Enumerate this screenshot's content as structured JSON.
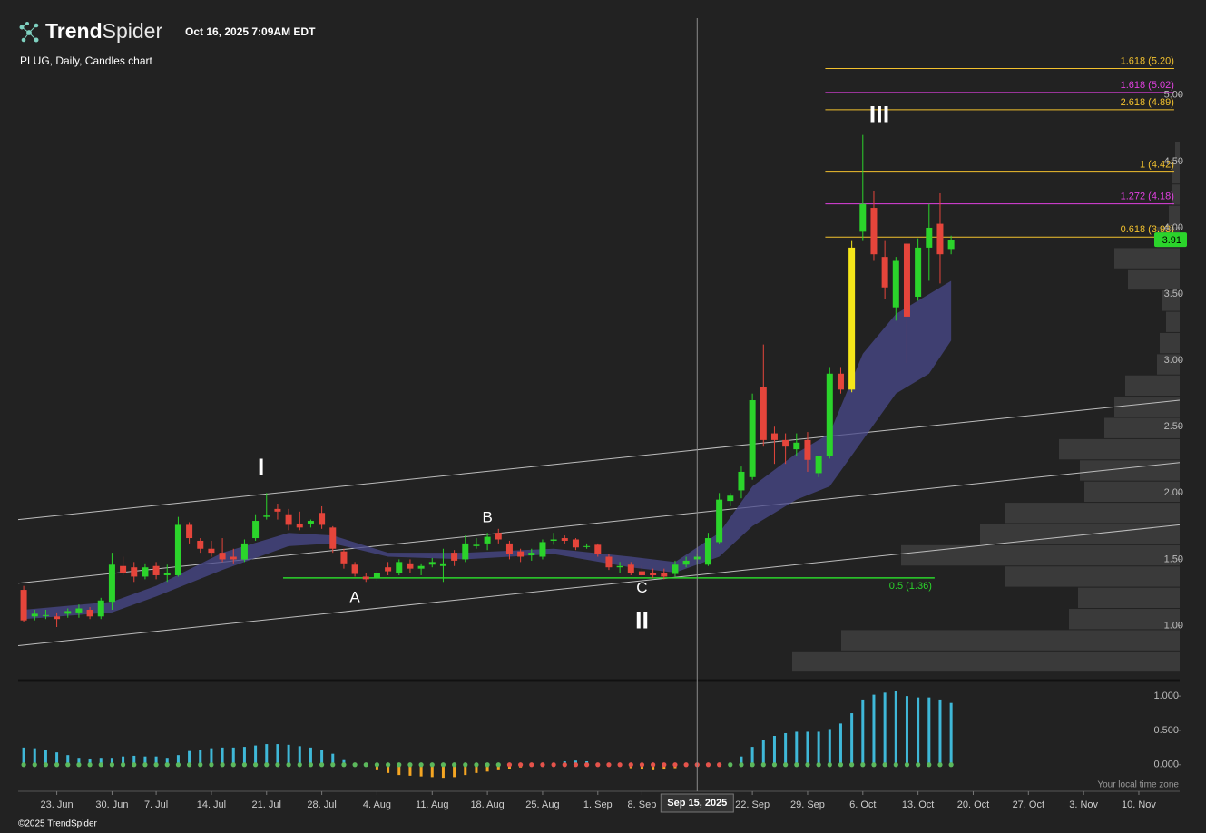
{
  "header": {
    "logo": {
      "bold": "Trend",
      "light": "Spider"
    },
    "timestamp": "Oct 16, 2025 7:09AM EDT",
    "chart_name": "PLUG, Daily, Candles chart",
    "copyright": "©2025 TrendSpider",
    "timezone_note": "Your local time zone"
  },
  "chart_data": {
    "type": "candlestick",
    "xlim": [
      -0.5,
      104.7
    ],
    "xticks": [
      {
        "value": 3,
        "label": "23. Jun"
      },
      {
        "value": 8,
        "label": "30. Jun"
      },
      {
        "value": 12,
        "label": "7. Jul"
      },
      {
        "value": 17,
        "label": "14. Jul"
      },
      {
        "value": 22,
        "label": "21. Jul"
      },
      {
        "value": 27,
        "label": "28. Jul"
      },
      {
        "value": 32,
        "label": "4. Aug"
      },
      {
        "value": 37,
        "label": "11. Aug"
      },
      {
        "value": 42,
        "label": "18. Aug"
      },
      {
        "value": 47,
        "label": "25. Aug"
      },
      {
        "value": 52,
        "label": "1. Sep"
      },
      {
        "value": 56,
        "label": "8. Sep"
      },
      {
        "value": 66,
        "label": "22. Sep"
      },
      {
        "value": 71,
        "label": "29. Sep"
      },
      {
        "value": 76,
        "label": "6. Oct"
      },
      {
        "value": 81,
        "label": "13. Oct"
      },
      {
        "value": 86,
        "label": "20. Oct"
      },
      {
        "value": 91,
        "label": "27. Oct"
      },
      {
        "value": 96,
        "label": "3. Nov"
      },
      {
        "value": 101,
        "label": "10. Nov"
      }
    ],
    "ylim": [
      0.6,
      5.58
    ],
    "yticks": [
      {
        "value": 1,
        "label": "1.00"
      },
      {
        "value": 1.5,
        "label": "1.50"
      },
      {
        "value": 2,
        "label": "2.00"
      },
      {
        "value": 2.5,
        "label": "2.50"
      },
      {
        "value": 3,
        "label": "3.00"
      },
      {
        "value": 3.5,
        "label": "3.50"
      },
      {
        "value": 4,
        "label": "4.00"
      },
      {
        "value": 4.5,
        "label": "4.50"
      },
      {
        "value": 5,
        "label": "5.00"
      }
    ],
    "up_color": "#2bd42b",
    "down_color": "#e5453b",
    "highlight_color": "#f5e61a",
    "highlighted": [
      75
    ],
    "open": [
      1.27,
      1.07,
      1.08,
      1.07,
      1.09,
      1.1,
      1.12,
      1.07,
      1.18,
      1.45,
      1.44,
      1.37,
      1.45,
      1.38,
      1.38,
      1.76,
      1.64,
      1.58,
      1.55,
      1.52,
      1.5,
      1.66,
      1.82,
      1.88,
      1.84,
      1.77,
      1.77,
      1.85,
      1.74,
      1.56,
      1.46,
      1.37,
      1.36,
      1.44,
      1.4,
      1.47,
      1.43,
      1.46,
      1.45,
      1.55,
      1.5,
      1.6,
      1.62,
      1.7,
      1.62,
      1.56,
      1.53,
      1.52,
      1.64,
      1.66,
      1.65,
      1.6,
      1.61,
      1.52,
      1.44,
      1.46,
      1.41,
      1.4,
      1.4,
      1.39,
      1.46,
      1.5,
      1.46,
      1.63,
      1.94,
      2.02,
      2.12,
      2.8,
      2.45,
      2.4,
      2.33,
      2.4,
      2.15,
      2.28,
      2.9,
      2.78,
      3.97,
      4.15,
      3.78,
      3.4,
      3.88,
      3.48,
      3.85,
      4.03,
      3.84
    ],
    "high": [
      1.3,
      1.12,
      1.12,
      1.1,
      1.13,
      1.16,
      1.14,
      1.21,
      1.55,
      1.52,
      1.48,
      1.47,
      1.48,
      1.46,
      1.82,
      1.78,
      1.66,
      1.64,
      1.66,
      1.58,
      1.65,
      1.84,
      2.0,
      1.92,
      1.88,
      1.86,
      1.8,
      1.9,
      1.75,
      1.58,
      1.48,
      1.4,
      1.42,
      1.48,
      1.5,
      1.5,
      1.47,
      1.51,
      1.58,
      1.57,
      1.68,
      1.66,
      1.7,
      1.73,
      1.64,
      1.58,
      1.58,
      1.65,
      1.7,
      1.68,
      1.66,
      1.62,
      1.62,
      1.54,
      1.48,
      1.48,
      1.45,
      1.43,
      1.43,
      1.49,
      1.52,
      1.54,
      1.7,
      2.0,
      2.0,
      2.2,
      2.75,
      3.12,
      2.5,
      2.45,
      2.45,
      2.46,
      2.28,
      2.95,
      2.95,
      3.9,
      4.7,
      4.28,
      3.9,
      3.78,
      3.92,
      3.92,
      4.18,
      4.26,
      3.94
    ],
    "low": [
      1.03,
      1.04,
      1.05,
      0.99,
      1.06,
      1.06,
      1.05,
      1.05,
      1.12,
      1.38,
      1.33,
      1.35,
      1.35,
      1.33,
      1.37,
      1.62,
      1.55,
      1.52,
      1.48,
      1.47,
      1.48,
      1.64,
      1.8,
      1.8,
      1.72,
      1.72,
      1.74,
      1.73,
      1.55,
      1.43,
      1.37,
      1.33,
      1.34,
      1.38,
      1.38,
      1.4,
      1.38,
      1.44,
      1.33,
      1.45,
      1.48,
      1.58,
      1.57,
      1.62,
      1.5,
      1.48,
      1.49,
      1.5,
      1.61,
      1.62,
      1.57,
      1.58,
      1.52,
      1.42,
      1.4,
      1.38,
      1.36,
      1.36,
      1.35,
      1.37,
      1.44,
      1.46,
      1.45,
      1.62,
      1.9,
      1.96,
      2.1,
      2.35,
      2.22,
      2.22,
      2.28,
      2.16,
      2.12,
      2.26,
      2.75,
      2.76,
      3.9,
      3.75,
      3.46,
      3.3,
      2.98,
      3.45,
      3.6,
      3.58,
      3.8
    ],
    "close": [
      1.04,
      1.09,
      1.08,
      1.05,
      1.11,
      1.13,
      1.07,
      1.19,
      1.46,
      1.4,
      1.37,
      1.44,
      1.38,
      1.4,
      1.76,
      1.66,
      1.58,
      1.55,
      1.5,
      1.5,
      1.62,
      1.79,
      1.83,
      1.86,
      1.76,
      1.74,
      1.79,
      1.76,
      1.58,
      1.47,
      1.39,
      1.35,
      1.4,
      1.41,
      1.48,
      1.43,
      1.45,
      1.48,
      1.47,
      1.49,
      1.62,
      1.61,
      1.67,
      1.65,
      1.54,
      1.52,
      1.55,
      1.63,
      1.65,
      1.64,
      1.59,
      1.6,
      1.54,
      1.44,
      1.45,
      1.4,
      1.38,
      1.38,
      1.37,
      1.46,
      1.49,
      1.52,
      1.66,
      1.95,
      1.98,
      2.16,
      2.7,
      2.4,
      2.4,
      2.35,
      2.38,
      2.25,
      2.28,
      2.9,
      2.78,
      3.85,
      4.18,
      3.8,
      3.55,
      3.75,
      3.33,
      3.85,
      4.0,
      3.8,
      3.91
    ],
    "band": {
      "color": "#4a4a8c",
      "x": [
        0,
        8,
        12,
        18,
        24,
        28,
        33,
        40,
        48,
        55,
        59,
        63,
        66,
        70,
        73,
        76,
        79,
        82,
        84
      ],
      "upper": [
        1.12,
        1.18,
        1.3,
        1.55,
        1.7,
        1.68,
        1.55,
        1.55,
        1.58,
        1.52,
        1.48,
        1.7,
        2.05,
        2.3,
        2.45,
        3.05,
        3.35,
        3.5,
        3.6
      ],
      "lower": [
        1.05,
        1.1,
        1.22,
        1.42,
        1.6,
        1.62,
        1.52,
        1.5,
        1.54,
        1.44,
        1.4,
        1.52,
        1.75,
        1.95,
        2.05,
        2.4,
        2.75,
        2.9,
        3.15
      ]
    },
    "trendlines": [
      {
        "x": [
          -0.5,
          104.7
        ],
        "y": [
          1.8,
          2.7
        ]
      },
      {
        "x": [
          -0.5,
          104.7
        ],
        "y": [
          1.32,
          2.23
        ]
      },
      {
        "x": [
          -0.5,
          104.7
        ],
        "y": [
          0.85,
          1.76
        ]
      }
    ],
    "fib_range": [
      72.6,
      104.2
    ],
    "fib_levels": [
      {
        "label": "1.618 (5.20)",
        "value": 5.2,
        "color": "#f2c12e"
      },
      {
        "label": "1.618 (5.02)",
        "value": 5.02,
        "color": "#e040e0"
      },
      {
        "label": "2.618 (4.89)",
        "value": 4.89,
        "color": "#f2c12e"
      },
      {
        "label": "1 (4.42)",
        "value": 4.42,
        "color": "#f2c12e"
      },
      {
        "label": "1.272 (4.18)",
        "value": 4.18,
        "color": "#e040e0"
      },
      {
        "label": "0.618 (3.93)",
        "value": 3.93,
        "color": "#f2c12e"
      }
    ],
    "support": {
      "label": "0.5 (1.36)",
      "value": 1.36,
      "x": [
        23.5,
        82.5
      ],
      "color": "#2bd42b"
    },
    "annotations": [
      {
        "text": "I",
        "x": 21.5,
        "y": 2.18
      },
      {
        "text": "A",
        "x": 30,
        "y": 1.21
      },
      {
        "text": "B",
        "x": 42,
        "y": 1.81
      },
      {
        "text": "C",
        "x": 56,
        "y": 1.28
      },
      {
        "text": "II",
        "x": 56,
        "y": 1.03
      },
      {
        "text": "III",
        "x": 77.5,
        "y": 4.84
      }
    ],
    "volume_profile": {
      "bins": [
        0.65,
        0.81,
        0.97,
        1.13,
        1.29,
        1.45,
        1.61,
        1.77,
        1.93,
        2.09,
        2.25,
        2.41,
        2.57,
        2.73,
        2.89,
        3.05,
        3.21,
        3.37,
        3.53,
        3.69,
        3.85,
        4.01,
        4.17,
        4.33,
        4.49,
        4.65
      ],
      "values": [
        427,
        373,
        122,
        112,
        193,
        307,
        220,
        193,
        105,
        110,
        133,
        83,
        72,
        60,
        25,
        22,
        15,
        20,
        57,
        72,
        25,
        12,
        8,
        8,
        5
      ],
      "color": "#3a3a3a"
    },
    "crosshair": {
      "x": 61,
      "label": "Sep 15, 2025"
    },
    "oscillator": {
      "ylim": [
        -0.36,
        1.2
      ],
      "yticks": [
        {
          "value": 1,
          "label": "1.000"
        },
        {
          "value": 0.5,
          "label": "0.500"
        },
        {
          "value": 0,
          "label": "0.000"
        }
      ],
      "pos_color": "#3fb8d8",
      "neg_color": "#f5a623",
      "dot_up_color": "#5cb85c",
      "dot_down_color": "#e5534b",
      "values": [
        0.25,
        0.24,
        0.22,
        0.18,
        0.14,
        0.1,
        0.09,
        0.1,
        0.1,
        0.12,
        0.13,
        0.12,
        0.12,
        0.1,
        0.14,
        0.2,
        0.22,
        0.24,
        0.25,
        0.25,
        0.26,
        0.28,
        0.3,
        0.3,
        0.29,
        0.27,
        0.25,
        0.22,
        0.16,
        0.08,
        0.02,
        -0.02,
        -0.08,
        -0.12,
        -0.15,
        -0.16,
        -0.17,
        -0.18,
        -0.19,
        -0.18,
        -0.15,
        -0.12,
        -0.1,
        -0.08,
        -0.06,
        -0.04,
        -0.02,
        0.01,
        0.03,
        0.05,
        0.06,
        0.05,
        0.03,
        0.01,
        -0.02,
        -0.05,
        -0.07,
        -0.08,
        -0.07,
        -0.05,
        -0.03,
        -0.02,
        0.01,
        0.02,
        0.03,
        0.12,
        0.26,
        0.36,
        0.42,
        0.46,
        0.48,
        0.48,
        0.48,
        0.52,
        0.6,
        0.75,
        0.95,
        1.02,
        1.05,
        1.07,
        1.0,
        0.98,
        0.98,
        0.95,
        0.9
      ],
      "signal": [
        1,
        1,
        1,
        1,
        1,
        1,
        1,
        1,
        1,
        1,
        1,
        1,
        1,
        1,
        1,
        1,
        1,
        1,
        1,
        1,
        1,
        1,
        1,
        1,
        1,
        1,
        1,
        1,
        1,
        1,
        1,
        1,
        1,
        1,
        1,
        1,
        1,
        1,
        1,
        1,
        1,
        1,
        1,
        1,
        -1,
        -1,
        -1,
        -1,
        -1,
        -1,
        -1,
        -1,
        -1,
        -1,
        -1,
        -1,
        -1,
        -1,
        -1,
        -1,
        -1,
        -1,
        -1,
        -1,
        1,
        1,
        1,
        1,
        1,
        1,
        1,
        1,
        1,
        1,
        1,
        1,
        1,
        1,
        1,
        1,
        1,
        1,
        1,
        1,
        1
      ]
    }
  }
}
